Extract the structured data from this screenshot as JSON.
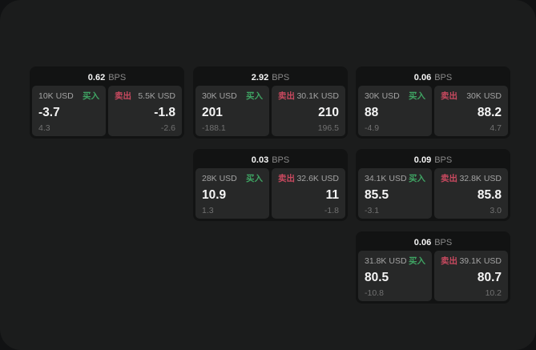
{
  "labels": {
    "bps": "BPS",
    "buy": "买入",
    "sell": "卖出"
  },
  "colors": {
    "bg_outer": "#111213",
    "bg_panel": "#1b1c1c",
    "card_bg": "#121313",
    "subpanel_bg": "#272828",
    "text_primary": "#f5f5f5",
    "text_secondary": "#a3a3a3",
    "text_tertiary": "#8a8a8a",
    "text_dim": "#717171",
    "buy_green": "#3fa463",
    "sell_red": "#c8495f"
  },
  "cards": [
    {
      "col": 1,
      "row": 1,
      "bps_value": "0.62",
      "buy": {
        "amount": "10K USD",
        "price": "-3.7",
        "skew": "4.3"
      },
      "sell": {
        "amount": "5.5K USD",
        "price": "-1.8",
        "skew": "-2.6"
      }
    },
    {
      "col": 2,
      "row": 1,
      "bps_value": "2.92",
      "buy": {
        "amount": "30K USD",
        "price": "201",
        "skew": "-188.1"
      },
      "sell": {
        "amount": "30.1K USD",
        "price": "210",
        "skew": "196.5"
      }
    },
    {
      "col": 3,
      "row": 1,
      "bps_value": "0.06",
      "buy": {
        "amount": "30K USD",
        "price": "88",
        "skew": "-4.9"
      },
      "sell": {
        "amount": "30K USD",
        "price": "88.2",
        "skew": "4.7"
      }
    },
    {
      "col": 2,
      "row": 2,
      "bps_value": "0.03",
      "buy": {
        "amount": "28K USD",
        "price": "10.9",
        "skew": "1.3"
      },
      "sell": {
        "amount": "32.6K USD",
        "price": "11",
        "skew": "-1.8"
      }
    },
    {
      "col": 3,
      "row": 2,
      "bps_value": "0.09",
      "buy": {
        "amount": "34.1K USD",
        "price": "85.5",
        "skew": "-3.1"
      },
      "sell": {
        "amount": "32.8K USD",
        "price": "85.8",
        "skew": "3.0"
      }
    },
    {
      "col": 3,
      "row": 3,
      "bps_value": "0.06",
      "buy": {
        "amount": "31.8K USD",
        "price": "80.5",
        "skew": "-10.8"
      },
      "sell": {
        "amount": "39.1K USD",
        "price": "80.7",
        "skew": "10.2"
      }
    }
  ]
}
